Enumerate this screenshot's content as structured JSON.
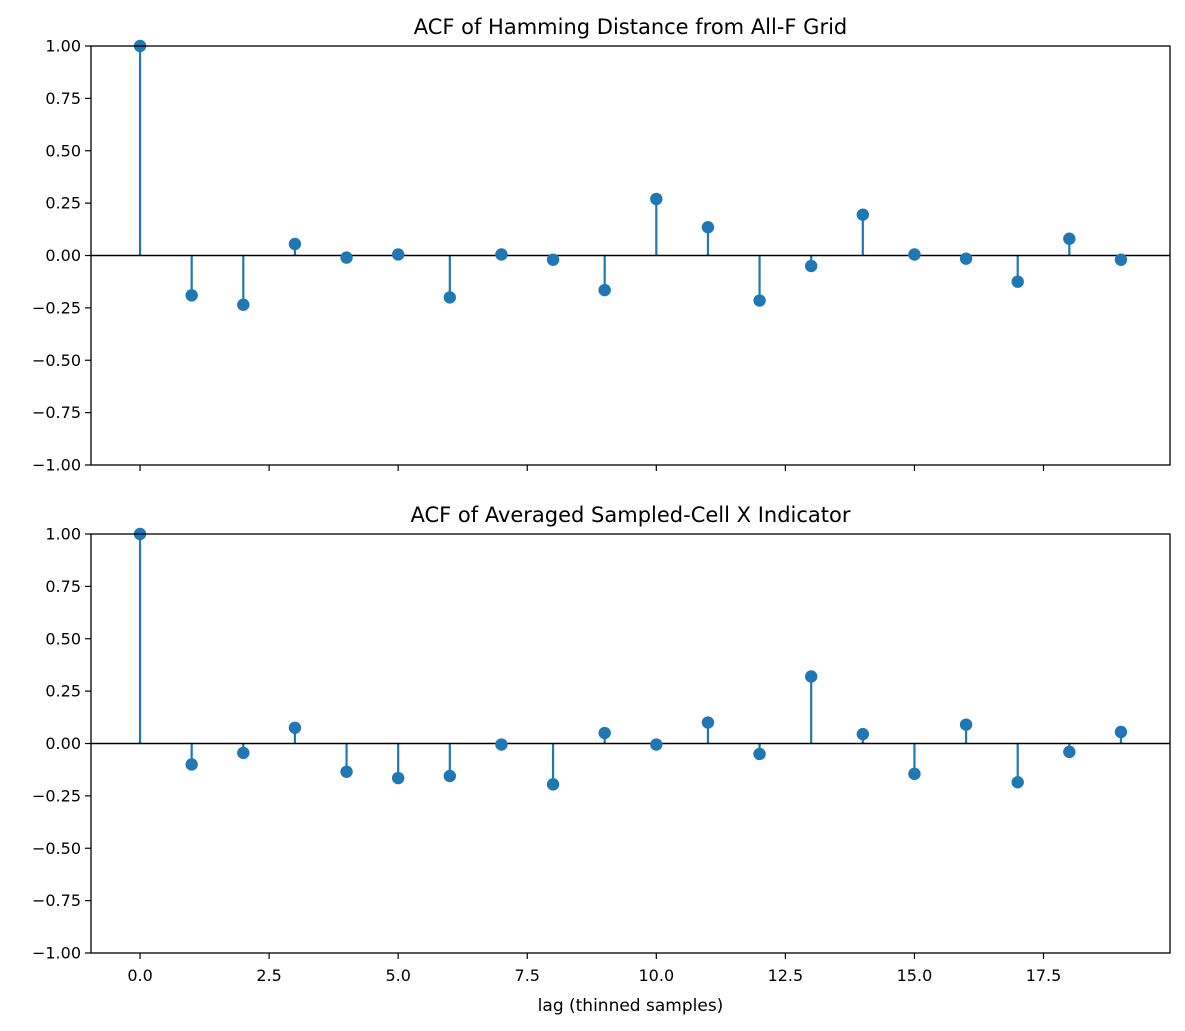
{
  "chart_data": [
    {
      "type": "stem",
      "title": "ACF of Hamming Distance from All-F Grid",
      "xlabel": "",
      "ylabel": "",
      "xlim": [
        -0.95,
        19.95
      ],
      "ylim": [
        -1.0,
        1.0
      ],
      "x": [
        0,
        1,
        2,
        3,
        4,
        5,
        6,
        7,
        8,
        9,
        10,
        11,
        12,
        13,
        14,
        15,
        16,
        17,
        18,
        19
      ],
      "values": [
        1.0,
        -0.19,
        -0.235,
        0.055,
        -0.01,
        0.005,
        -0.2,
        0.005,
        -0.02,
        -0.165,
        0.27,
        0.135,
        -0.215,
        -0.05,
        0.195,
        0.005,
        -0.015,
        -0.125,
        0.08,
        -0.02
      ],
      "yticks": [
        -1.0,
        -0.75,
        -0.5,
        -0.25,
        0.0,
        0.25,
        0.5,
        0.75,
        1.0
      ],
      "ytick_labels": [
        "−1.00",
        "−0.75",
        "−0.50",
        "−0.25",
        "0.00",
        "0.25",
        "0.50",
        "0.75",
        "1.00"
      ],
      "xticks": [
        0,
        2.5,
        5,
        7.5,
        10,
        12.5,
        15,
        17.5
      ],
      "xtick_labels": [],
      "color": "#1f77b4",
      "baseline_color": "#000000"
    },
    {
      "type": "stem",
      "title": "ACF of Averaged Sampled-Cell X Indicator",
      "xlabel": "lag (thinned samples)",
      "ylabel": "",
      "xlim": [
        -0.95,
        19.95
      ],
      "ylim": [
        -1.0,
        1.0
      ],
      "x": [
        0,
        1,
        2,
        3,
        4,
        5,
        6,
        7,
        8,
        9,
        10,
        11,
        12,
        13,
        14,
        15,
        16,
        17,
        18,
        19
      ],
      "values": [
        1.0,
        -0.1,
        -0.045,
        0.075,
        -0.135,
        -0.165,
        -0.155,
        -0.005,
        -0.195,
        0.05,
        -0.005,
        0.1,
        -0.05,
        0.32,
        0.045,
        -0.145,
        0.09,
        -0.185,
        -0.04,
        0.055
      ],
      "yticks": [
        -1.0,
        -0.75,
        -0.5,
        -0.25,
        0.0,
        0.25,
        0.5,
        0.75,
        1.0
      ],
      "ytick_labels": [
        "−1.00",
        "−0.75",
        "−0.50",
        "−0.25",
        "0.00",
        "0.25",
        "0.50",
        "0.75",
        "1.00"
      ],
      "xticks": [
        0,
        2.5,
        5,
        7.5,
        10,
        12.5,
        15,
        17.5
      ],
      "xtick_labels": [
        "0.0",
        "2.5",
        "5.0",
        "7.5",
        "10.0",
        "12.5",
        "15.0",
        "17.5"
      ],
      "color": "#1f77b4",
      "baseline_color": "#000000"
    }
  ]
}
